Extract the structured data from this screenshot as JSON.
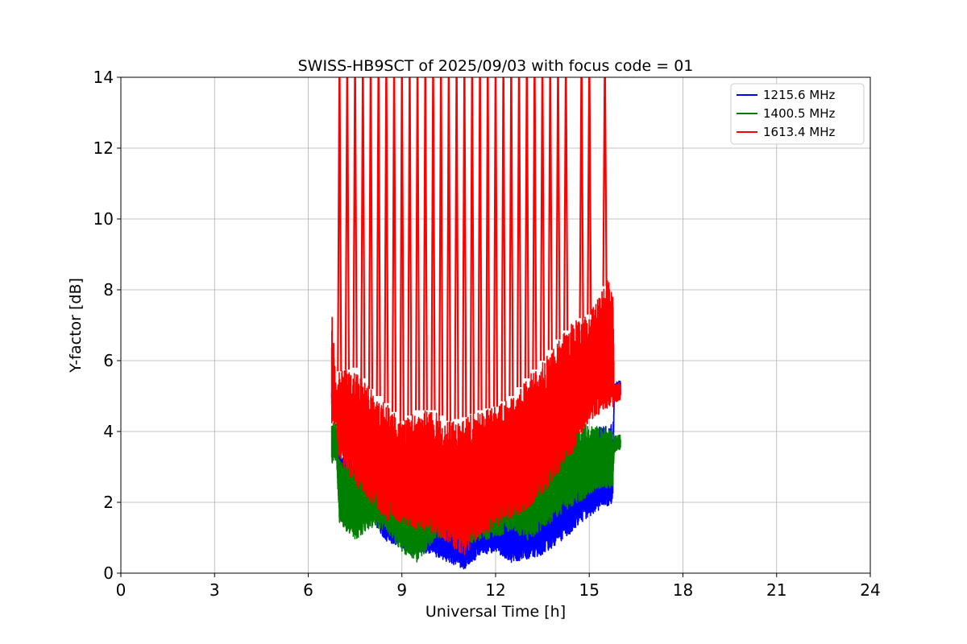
{
  "chart_data": {
    "type": "line",
    "title": "SWISS-HB9SCT of 2025/09/03 with focus code = 01",
    "xlabel": "Universal Time [h]",
    "ylabel": "Y-factor [dB]",
    "xlim": [
      0,
      24
    ],
    "ylim": [
      0,
      14
    ],
    "xticks": [
      "0",
      "3",
      "6",
      "9",
      "12",
      "15",
      "18",
      "21",
      "24"
    ],
    "yticks": [
      "0",
      "2",
      "4",
      "6",
      "8",
      "10",
      "12",
      "14"
    ],
    "grid": true,
    "legend_position": "top-right",
    "series": [
      {
        "name": "1215.6 MHz",
        "color": "#0000ff",
        "envelope": {
          "x": [
            6.75,
            6.9,
            7.0,
            7.5,
            8.0,
            8.5,
            9.0,
            9.5,
            10.0,
            10.5,
            11.0,
            11.5,
            12.0,
            12.5,
            13.0,
            13.5,
            14.0,
            14.5,
            15.0,
            15.5,
            15.75,
            15.8,
            16.0
          ],
          "low": [
            4.9,
            5.0,
            2.7,
            2.3,
            1.5,
            0.9,
            0.7,
            0.6,
            0.5,
            0.3,
            0.1,
            0.5,
            0.6,
            0.3,
            0.4,
            0.5,
            0.8,
            1.2,
            1.6,
            1.9,
            1.9,
            4.9,
            5.0
          ],
          "high": [
            5.2,
            5.2,
            3.4,
            3.2,
            2.8,
            2.6,
            2.8,
            2.7,
            2.3,
            2.0,
            1.9,
            2.0,
            2.1,
            2.0,
            2.2,
            2.5,
            3.0,
            3.6,
            4.0,
            4.2,
            4.3,
            5.4,
            5.45
          ]
        }
      },
      {
        "name": "1400.5 MHz",
        "color": "#008000",
        "envelope": {
          "x": [
            6.75,
            6.9,
            7.0,
            7.5,
            8.0,
            8.5,
            9.0,
            9.5,
            10.0,
            10.5,
            11.0,
            11.5,
            12.0,
            12.5,
            13.0,
            13.5,
            14.0,
            14.5,
            15.0,
            15.5,
            15.75,
            15.8,
            16.0
          ],
          "low": [
            3.1,
            3.2,
            1.4,
            0.9,
            1.3,
            1.2,
            0.6,
            0.3,
            0.9,
            1.1,
            0.8,
            0.9,
            1.0,
            1.2,
            0.9,
            1.2,
            1.6,
            1.9,
            2.2,
            2.4,
            2.4,
            3.4,
            3.5
          ],
          "high": [
            4.2,
            4.3,
            3.2,
            3.0,
            3.0,
            2.9,
            2.7,
            2.6,
            2.7,
            2.6,
            2.8,
            2.9,
            3.0,
            3.1,
            3.2,
            3.4,
            3.8,
            4.2,
            4.2,
            4.1,
            4.0,
            3.9,
            3.9
          ]
        }
      },
      {
        "name": "1613.4 MHz",
        "color": "#ff0000",
        "envelope": {
          "x": [
            6.75,
            6.9,
            7.0,
            7.5,
            8.0,
            8.5,
            9.0,
            9.5,
            10.0,
            10.5,
            11.0,
            11.5,
            12.0,
            12.5,
            13.0,
            13.5,
            14.0,
            14.5,
            15.0,
            15.5,
            15.75,
            15.8,
            16.0
          ],
          "low": [
            4.2,
            4.2,
            3.2,
            2.5,
            2.0,
            1.5,
            1.4,
            1.2,
            1.1,
            0.8,
            0.5,
            1.0,
            1.3,
            1.5,
            1.8,
            2.2,
            2.8,
            3.4,
            4.3,
            4.6,
            4.6,
            4.8,
            4.9
          ],
          "high": [
            7.6,
            5.2,
            5.7,
            5.8,
            5.2,
            4.8,
            4.3,
            4.6,
            4.6,
            4.3,
            4.4,
            4.6,
            4.7,
            5.0,
            5.5,
            6.0,
            6.6,
            7.1,
            7.3,
            8.1,
            8.6,
            5.3,
            5.4
          ]
        },
        "spikes_x": [
          7.0,
          7.25,
          7.5,
          7.75,
          8.0,
          8.25,
          8.5,
          8.75,
          9.0,
          9.25,
          9.5,
          9.75,
          10.0,
          10.25,
          10.5,
          10.75,
          11.0,
          11.25,
          11.5,
          11.75,
          12.0,
          12.25,
          12.5,
          12.75,
          13.0,
          13.25,
          13.5,
          13.75,
          14.0,
          14.25,
          14.75,
          15.0,
          15.5
        ],
        "spike_top": 14
      }
    ]
  }
}
